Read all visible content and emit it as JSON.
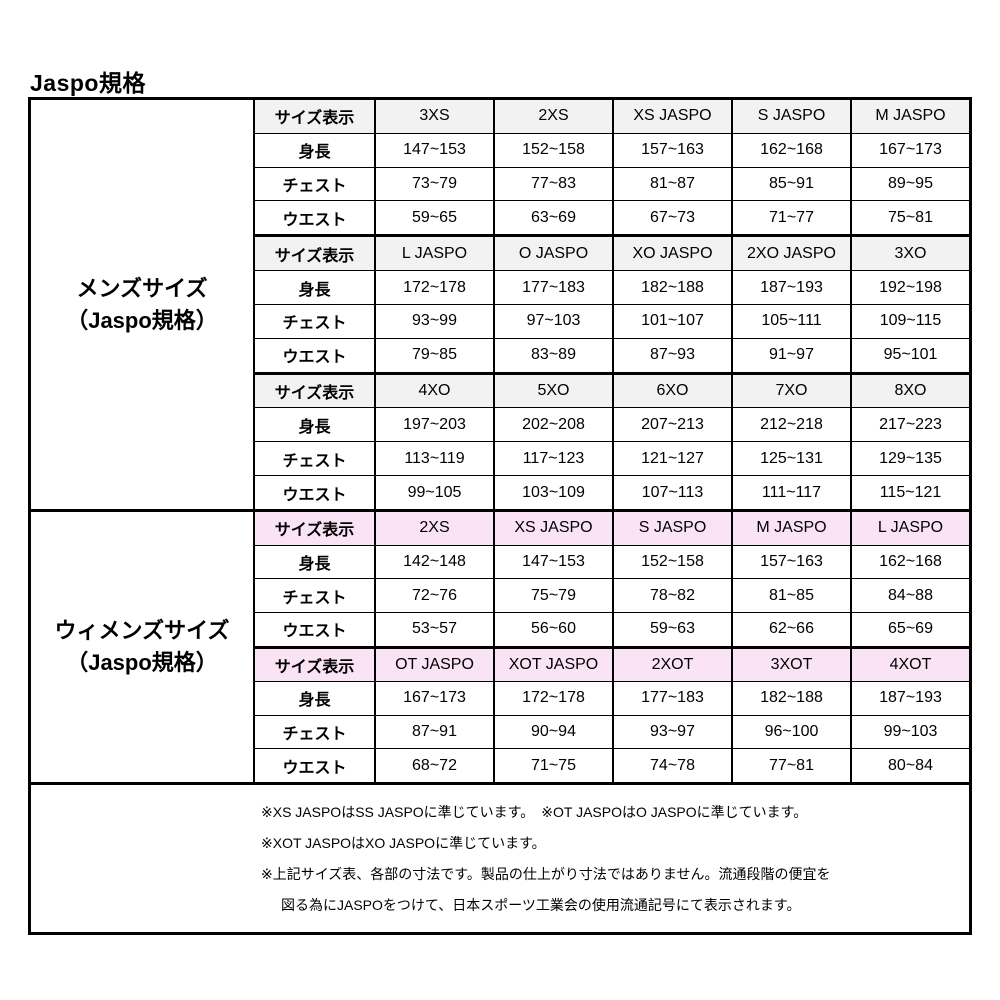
{
  "title": "Jaspo規格",
  "colors": {
    "background": "#ffffff",
    "border": "#000000",
    "mens_header_bg": "#f2f2f2",
    "womens_header_bg": "#fbe3f6",
    "text": "#000000"
  },
  "row_labels": {
    "size": "サイズ表示",
    "height": "身長",
    "chest": "チェスト",
    "waist": "ウエスト"
  },
  "sections": [
    {
      "name": "mens",
      "side_label": [
        "メンズサイズ",
        "（Jaspo規格）"
      ],
      "blocks": [
        {
          "sizes": [
            "3XS",
            "2XS",
            "XS JASPO",
            "S JASPO",
            "M JASPO"
          ],
          "height": [
            "147~153",
            "152~158",
            "157~163",
            "162~168",
            "167~173"
          ],
          "chest": [
            "73~79",
            "77~83",
            "81~87",
            "85~91",
            "89~95"
          ],
          "waist": [
            "59~65",
            "63~69",
            "67~73",
            "71~77",
            "75~81"
          ]
        },
        {
          "sizes": [
            "L JASPO",
            "O JASPO",
            "XO JASPO",
            "2XO JASPO",
            "3XO"
          ],
          "height": [
            "172~178",
            "177~183",
            "182~188",
            "187~193",
            "192~198"
          ],
          "chest": [
            "93~99",
            "97~103",
            "101~107",
            "105~111",
            "109~115"
          ],
          "waist": [
            "79~85",
            "83~89",
            "87~93",
            "91~97",
            "95~101"
          ]
        },
        {
          "sizes": [
            "4XO",
            "5XO",
            "6XO",
            "7XO",
            "8XO"
          ],
          "height": [
            "197~203",
            "202~208",
            "207~213",
            "212~218",
            "217~223"
          ],
          "chest": [
            "113~119",
            "117~123",
            "121~127",
            "125~131",
            "129~135"
          ],
          "waist": [
            "99~105",
            "103~109",
            "107~113",
            "111~117",
            "115~121"
          ]
        }
      ]
    },
    {
      "name": "womens",
      "side_label": [
        "ウィメンズサイズ",
        "（Jaspo規格）"
      ],
      "blocks": [
        {
          "sizes": [
            "2XS",
            "XS JASPO",
            "S JASPO",
            "M JASPO",
            "L JASPO"
          ],
          "height": [
            "142~148",
            "147~153",
            "152~158",
            "157~163",
            "162~168"
          ],
          "chest": [
            "72~76",
            "75~79",
            "78~82",
            "81~85",
            "84~88"
          ],
          "waist": [
            "53~57",
            "56~60",
            "59~63",
            "62~66",
            "65~69"
          ]
        },
        {
          "sizes": [
            "OT JASPO",
            "XOT JASPO",
            "2XOT",
            "3XOT",
            "4XOT"
          ],
          "height": [
            "167~173",
            "172~178",
            "177~183",
            "182~188",
            "187~193"
          ],
          "chest": [
            "87~91",
            "90~94",
            "93~97",
            "96~100",
            "99~103"
          ],
          "waist": [
            "68~72",
            "71~75",
            "74~78",
            "77~81",
            "80~84"
          ]
        }
      ]
    }
  ],
  "footnotes": [
    "※XS JASPOはSS JASPOに準じています。　※OT JASPOはO JASPOに準じています。",
    "※XOT JASPOはXO JASPOに準じています。",
    "※上記サイズ表、各部の寸法です。製品の仕上がり寸法ではありません。流通段階の便宜を",
    "図る為にJASPOをつけて、日本スポーツ工業会の使用流通記号にて表示されます。"
  ]
}
